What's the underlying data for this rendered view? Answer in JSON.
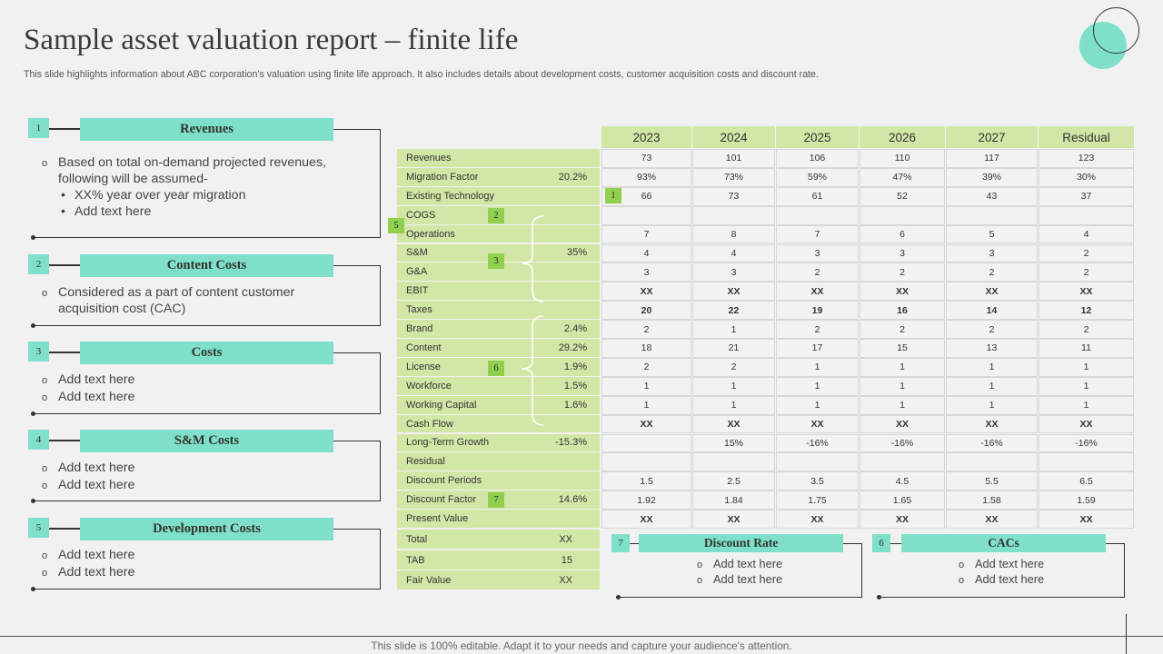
{
  "title": "Sample asset valuation report – finite life",
  "subtitle": "This slide highlights information about ABC corporation’s valuation using finite life approach. It also includes details about development costs, customer acquisition costs and discount rate.",
  "sections": [
    {
      "num": "1",
      "title": "Revenues",
      "bullets": [
        {
          "type": "o",
          "text": "Based on total on-demand projected revenues, following will be assumed-"
        },
        {
          "type": "d",
          "text": "XX% year over year migration"
        },
        {
          "type": "d",
          "text": "Add text here"
        }
      ]
    },
    {
      "num": "2",
      "title": "Content Costs",
      "bullets": [
        {
          "type": "o",
          "text": "Considered as a part of content customer acquisition cost (CAC)"
        }
      ]
    },
    {
      "num": "3",
      "title": "Costs",
      "bullets": [
        {
          "type": "o",
          "text": "Add text here"
        },
        {
          "type": "o",
          "text": "Add text here"
        }
      ]
    },
    {
      "num": "4",
      "title": "S&M Costs",
      "bullets": [
        {
          "type": "o",
          "text": "Add text here"
        },
        {
          "type": "o",
          "text": "Add text here"
        }
      ]
    },
    {
      "num": "5",
      "title": "Development Costs",
      "bullets": [
        {
          "type": "o",
          "text": "Add text here"
        },
        {
          "type": "o",
          "text": "Add text here"
        }
      ]
    }
  ],
  "table": {
    "years": [
      "2023",
      "2024",
      "2025",
      "2026",
      "2027",
      "Residual"
    ],
    "rows": [
      {
        "label": "Revenues",
        "pct": "",
        "values": [
          "73",
          "101",
          "106",
          "110",
          "117",
          "123"
        ],
        "bold": false
      },
      {
        "label": "Migration Factor",
        "pct": "20.2%",
        "values": [
          "93%",
          "73%",
          "59%",
          "47%",
          "39%",
          "30%"
        ],
        "bold": false
      },
      {
        "label": "Existing Technology",
        "pct": "",
        "values": [
          "66",
          "73",
          "61",
          "52",
          "43",
          "37"
        ],
        "bold": false
      },
      {
        "label": "COGS",
        "pct": "",
        "values": [
          "",
          "",
          "",
          "",
          "",
          ""
        ],
        "bold": false
      },
      {
        "label": "Operations",
        "pct": "",
        "values": [
          "7",
          "8",
          "7",
          "6",
          "5",
          "4"
        ],
        "bold": false
      },
      {
        "label": "S&M",
        "pct": "35%",
        "values": [
          "4",
          "4",
          "3",
          "3",
          "3",
          "2"
        ],
        "bold": false
      },
      {
        "label": "G&A",
        "pct": "",
        "values": [
          "3",
          "3",
          "2",
          "2",
          "2",
          "2"
        ],
        "bold": false
      },
      {
        "label": "EBIT",
        "pct": "",
        "values": [
          "XX",
          "XX",
          "XX",
          "XX",
          "XX",
          "XX"
        ],
        "bold": true
      },
      {
        "label": "Taxes",
        "pct": "",
        "values": [
          "20",
          "22",
          "19",
          "16",
          "14",
          "12"
        ],
        "bold": true
      },
      {
        "label": "Brand",
        "pct": "2.4%",
        "values": [
          "2",
          "1",
          "2",
          "2",
          "2",
          "2"
        ],
        "bold": false
      },
      {
        "label": "Content",
        "pct": "29.2%",
        "values": [
          "18",
          "21",
          "17",
          "15",
          "13",
          "11"
        ],
        "bold": false
      },
      {
        "label": "License",
        "pct": "1.9%",
        "values": [
          "2",
          "2",
          "1",
          "1",
          "1",
          "1"
        ],
        "bold": false
      },
      {
        "label": "Workforce",
        "pct": "1.5%",
        "values": [
          "1",
          "1",
          "1",
          "1",
          "1",
          "1"
        ],
        "bold": false
      },
      {
        "label": "Working Capital",
        "pct": "1.6%",
        "values": [
          "1",
          "1",
          "1",
          "1",
          "1",
          "1"
        ],
        "bold": false
      },
      {
        "label": "Cash Flow",
        "pct": "",
        "values": [
          "XX",
          "XX",
          "XX",
          "XX",
          "XX",
          "XX"
        ],
        "bold": true
      },
      {
        "label": "Long-Term Growth",
        "pct": "-15.3%",
        "values": [
          "",
          "15%",
          "-16%",
          "-16%",
          "-16%",
          "-16%"
        ],
        "bold": false
      },
      {
        "label": "Residual",
        "pct": "",
        "values": [
          "",
          "",
          "",
          "",
          "",
          ""
        ],
        "bold": false
      },
      {
        "label": "Discount Periods",
        "pct": "",
        "values": [
          "1.5",
          "2.5",
          "3.5",
          "4.5",
          "5.5",
          "6.5"
        ],
        "bold": false
      },
      {
        "label": "Discount Factor",
        "pct": "14.6%",
        "values": [
          "1.92",
          "1.84",
          "1.75",
          "1.65",
          "1.58",
          "1.59"
        ],
        "bold": false
      },
      {
        "label": "Present Value",
        "pct": "",
        "values": [
          "XX",
          "XX",
          "XX",
          "XX",
          "XX",
          "XX"
        ],
        "bold": true
      }
    ],
    "summary": [
      {
        "label": "Total",
        "value": "XX"
      },
      {
        "label": "TAB",
        "value": "15"
      },
      {
        "label": "Fair Value",
        "value": "XX"
      }
    ],
    "tags": {
      "t1": "1",
      "t2": "2",
      "t3": "3",
      "t5": "5",
      "t6": "6",
      "t7": "7"
    }
  },
  "bottom_boxes": [
    {
      "num": "7",
      "title": "Discount Rate",
      "bullets": [
        "Add text here",
        "Add text here"
      ]
    },
    {
      "num": "6",
      "title": "CACs",
      "bullets": [
        "Add text here",
        "Add text here"
      ]
    }
  ],
  "footer": "This slide is 100% editable. Adapt it to your needs and capture your audience's attention.",
  "colors": {
    "accent": "#7ee0c8",
    "table_green": "#d2e6a6",
    "tag_green": "#8fd14f"
  }
}
